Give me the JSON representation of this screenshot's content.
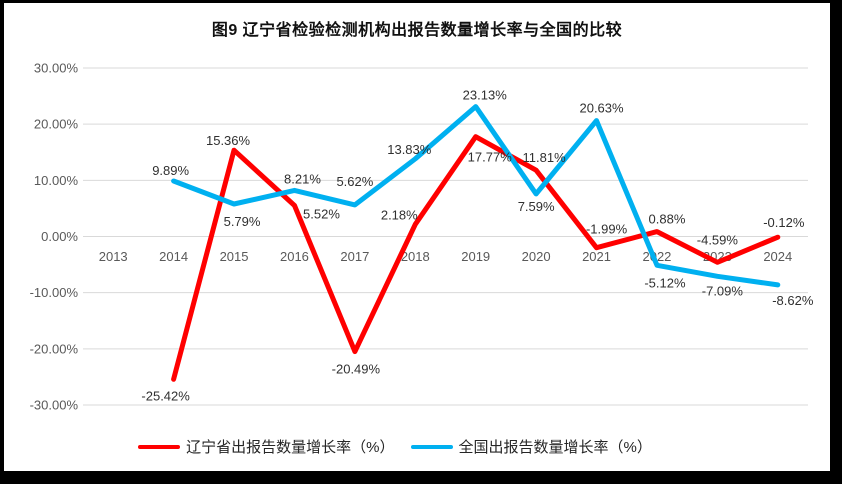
{
  "chart_data": {
    "type": "line",
    "title": "图9  辽宁省检验检测机构出报告数量增长率与全国的比较",
    "categories": [
      "2013",
      "2014",
      "2015",
      "2016",
      "2017",
      "2018",
      "2019",
      "2020",
      "2021",
      "2022",
      "2023",
      "2024"
    ],
    "series": [
      {
        "id": "liaoning",
        "name": "辽宁省出报告数量增长率（%）",
        "color": "#FF0000",
        "values": [
          null,
          -25.42,
          15.36,
          5.52,
          -20.49,
          2.18,
          17.77,
          11.81,
          -1.99,
          0.88,
          -4.59,
          -0.12
        ],
        "label_offsets": [
          [
            0,
            0
          ],
          [
            -8,
            21
          ],
          [
            -6,
            -5
          ],
          [
            27,
            13
          ],
          [
            1,
            22
          ],
          [
            -16,
            -5
          ],
          [
            14,
            25
          ],
          [
            8,
            -8
          ],
          [
            10,
            -14
          ],
          [
            10,
            -8
          ],
          [
            0,
            -18
          ],
          [
            6,
            -10
          ]
        ]
      },
      {
        "id": "national",
        "name": "全国出报告数量增长率（%）",
        "color": "#00B0F0",
        "values": [
          null,
          9.89,
          5.79,
          8.21,
          5.62,
          13.83,
          23.13,
          7.59,
          20.63,
          -5.12,
          -7.09,
          -8.62
        ],
        "label_offsets": [
          [
            0,
            0
          ],
          [
            -3,
            -6
          ],
          [
            8,
            22
          ],
          [
            8,
            -7
          ],
          [
            0,
            -19
          ],
          [
            -6,
            -5
          ],
          [
            9,
            -7
          ],
          [
            0,
            17
          ],
          [
            5,
            -8
          ],
          [
            8,
            22
          ],
          [
            5,
            19
          ],
          [
            15,
            20
          ]
        ]
      }
    ],
    "ylim": [
      -30,
      30
    ],
    "ytick_step": 10,
    "ytick_labels": [
      "30.00%",
      "20.00%",
      "10.00%",
      "0.00%",
      "-10.00%",
      "-20.00%",
      "-30.00%"
    ],
    "value_suffix": "%",
    "grid": true,
    "legend_position": "bottom",
    "colors": {
      "grid": "#D9D9D9",
      "axis_labels": "#595959",
      "data_labels": "#303030",
      "title": "#111111",
      "frame": "#000000",
      "background": "#FFFFFF"
    }
  }
}
